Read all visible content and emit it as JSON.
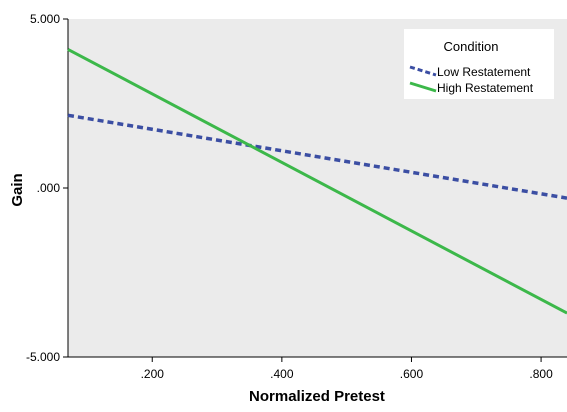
{
  "chart_data": {
    "type": "line",
    "title": "",
    "xlabel": "Normalized Pretest",
    "ylabel": "Gain",
    "xlim": [
      0.07,
      0.84
    ],
    "ylim": [
      -5,
      5
    ],
    "x_ticks": [
      0.2,
      0.4,
      0.6,
      0.8
    ],
    "x_tick_labels": [
      ".200",
      ".400",
      ".600",
      ".800"
    ],
    "y_ticks": [
      5,
      0,
      -5
    ],
    "y_tick_labels": [
      "5.000",
      ".000",
      "-5.000"
    ],
    "grid": false,
    "legend": {
      "title": "Condition",
      "placement": "top-right"
    },
    "series": [
      {
        "name": "Low Restatement",
        "color": "#3b4ea3",
        "style": "dashed",
        "x": [
          0.07,
          0.84
        ],
        "y": [
          2.15,
          -0.3
        ]
      },
      {
        "name": "High Restatement",
        "color": "#3cb84a",
        "style": "solid",
        "x": [
          0.07,
          0.84
        ],
        "y": [
          4.1,
          -3.7
        ]
      }
    ]
  },
  "colors": {
    "plot_background": "#ebebeb",
    "axis": "#000000"
  }
}
